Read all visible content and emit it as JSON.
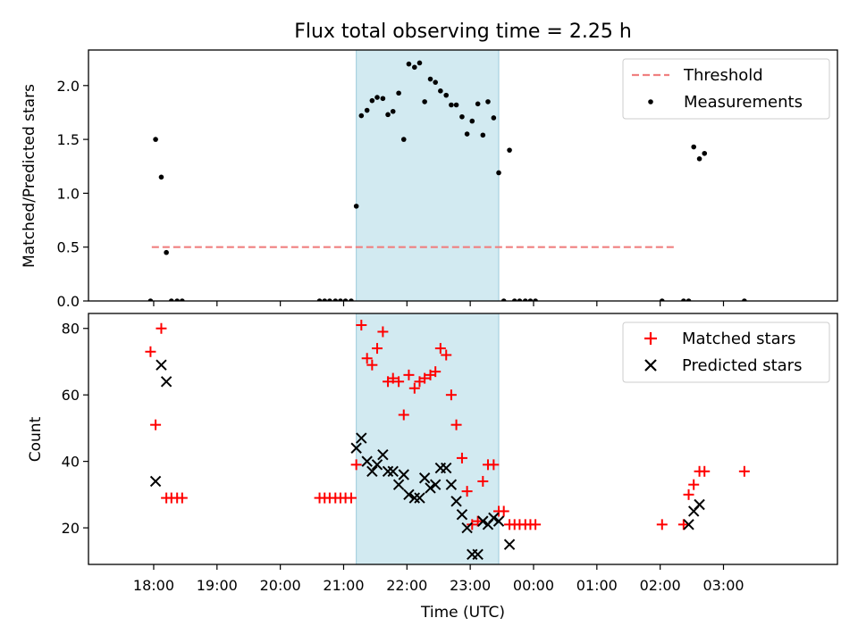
{
  "figure": {
    "title": "Flux total observing time = 2.25 h",
    "xlabel": "Time (UTC)",
    "x_tick_labels": [
      "18:00",
      "19:00",
      "20:00",
      "21:00",
      "22:00",
      "23:00",
      "00:00",
      "01:00",
      "02:00",
      "03:00"
    ],
    "x_tick_hours": [
      18,
      19,
      20,
      21,
      22,
      23,
      24,
      25,
      26,
      27
    ],
    "xlim": [
      16.97,
      28.8
    ],
    "shaded_span_hours": [
      21.2,
      23.45
    ],
    "colors": {
      "threshold": "#f08080",
      "measurement": "#000000",
      "matched": "#ff0000",
      "predicted": "#000000",
      "span": "#add8e6"
    }
  },
  "chart_data": [
    {
      "type": "scatter",
      "panel": "top",
      "ylabel": "Matched/Predicted stars",
      "ylim": [
        0,
        2.33
      ],
      "y_ticks": [
        0.0,
        0.5,
        1.0,
        1.5,
        2.0
      ],
      "y_tick_labels": [
        "0.0",
        "0.5",
        "1.0",
        "1.5",
        "2.0"
      ],
      "legend": [
        "Threshold",
        "Measurements"
      ],
      "legend_position": "upper right",
      "threshold": {
        "name": "Threshold",
        "value": 0.5,
        "x_range": [
          17.97,
          26.27
        ],
        "style": "dashed"
      },
      "series": [
        {
          "name": "Measurements",
          "x": [
            17.95,
            18.03,
            18.12,
            18.2,
            18.28,
            18.37,
            18.45,
            20.62,
            20.7,
            20.78,
            20.87,
            20.95,
            21.03,
            21.12,
            21.2,
            21.28,
            21.37,
            21.45,
            21.53,
            21.62,
            21.7,
            21.78,
            21.87,
            21.95,
            22.03,
            22.12,
            22.2,
            22.28,
            22.37,
            22.45,
            22.53,
            22.62,
            22.7,
            22.78,
            22.87,
            22.95,
            23.03,
            23.12,
            23.2,
            23.28,
            23.37,
            23.45,
            23.53,
            23.62,
            23.7,
            23.78,
            23.87,
            23.95,
            24.03,
            26.03,
            26.37,
            26.45,
            26.53,
            26.62,
            26.7,
            27.33
          ],
          "y": [
            0.0,
            1.5,
            1.15,
            0.45,
            0.0,
            0.0,
            0.0,
            0.0,
            0.0,
            0.0,
            0.0,
            0.0,
            0.0,
            0.0,
            0.88,
            1.72,
            1.77,
            1.86,
            1.89,
            1.88,
            1.73,
            1.76,
            1.93,
            1.5,
            2.2,
            2.17,
            2.21,
            1.85,
            2.06,
            2.03,
            1.95,
            1.91,
            1.82,
            1.82,
            1.71,
            1.55,
            1.67,
            1.83,
            1.54,
            1.85,
            1.7,
            1.19,
            0.0,
            1.4,
            0.0,
            0.0,
            0.0,
            0.0,
            0.0,
            0.0,
            0.0,
            0.0,
            1.43,
            1.32,
            1.37,
            0.0
          ]
        }
      ]
    },
    {
      "type": "scatter",
      "panel": "bottom",
      "ylabel": "Count",
      "ylim": [
        9,
        84.5
      ],
      "y_ticks": [
        20,
        40,
        60,
        80
      ],
      "y_tick_labels": [
        "20",
        "40",
        "60",
        "80"
      ],
      "legend": [
        "Matched stars",
        "Predicted stars"
      ],
      "legend_position": "upper right",
      "series": [
        {
          "name": "Matched stars",
          "marker": "plus",
          "x": [
            17.95,
            18.03,
            18.12,
            18.2,
            18.28,
            18.37,
            18.45,
            20.62,
            20.7,
            20.78,
            20.87,
            20.95,
            21.03,
            21.12,
            21.2,
            21.28,
            21.37,
            21.45,
            21.53,
            21.62,
            21.7,
            21.78,
            21.87,
            21.95,
            22.03,
            22.12,
            22.2,
            22.28,
            22.37,
            22.45,
            22.53,
            22.62,
            22.7,
            22.78,
            22.87,
            22.95,
            23.03,
            23.12,
            23.2,
            23.28,
            23.37,
            23.45,
            23.53,
            23.62,
            23.7,
            23.78,
            23.87,
            23.95,
            24.03,
            26.03,
            26.37,
            26.45,
            26.53,
            26.62,
            26.7,
            27.33
          ],
          "y": [
            73,
            51,
            80,
            29,
            29,
            29,
            29,
            29,
            29,
            29,
            29,
            29,
            29,
            29,
            39,
            81,
            71,
            69,
            74,
            79,
            64,
            65,
            64,
            54,
            66,
            62,
            64,
            65,
            66,
            67,
            74,
            72,
            60,
            51,
            41,
            31,
            21,
            22,
            34,
            39,
            39,
            25,
            25,
            21,
            21,
            21,
            21,
            21,
            21,
            21,
            21,
            30,
            33,
            37,
            37,
            37
          ]
        },
        {
          "name": "Predicted stars",
          "marker": "x",
          "x": [
            18.03,
            18.12,
            18.2,
            21.2,
            21.28,
            21.37,
            21.45,
            21.53,
            21.62,
            21.7,
            21.78,
            21.87,
            21.95,
            22.03,
            22.12,
            22.2,
            22.28,
            22.37,
            22.45,
            22.53,
            22.62,
            22.7,
            22.78,
            22.87,
            22.95,
            23.03,
            23.12,
            23.2,
            23.28,
            23.37,
            23.45,
            23.62,
            26.45,
            26.53,
            26.62
          ],
          "y": [
            34,
            69,
            64,
            44,
            47,
            40,
            37,
            39,
            42,
            37,
            37,
            33,
            36,
            30,
            29,
            29,
            35,
            32,
            33,
            38,
            38,
            33,
            28,
            24,
            20,
            12,
            12,
            22,
            21,
            23,
            22,
            15,
            21,
            25,
            27
          ]
        }
      ]
    }
  ]
}
